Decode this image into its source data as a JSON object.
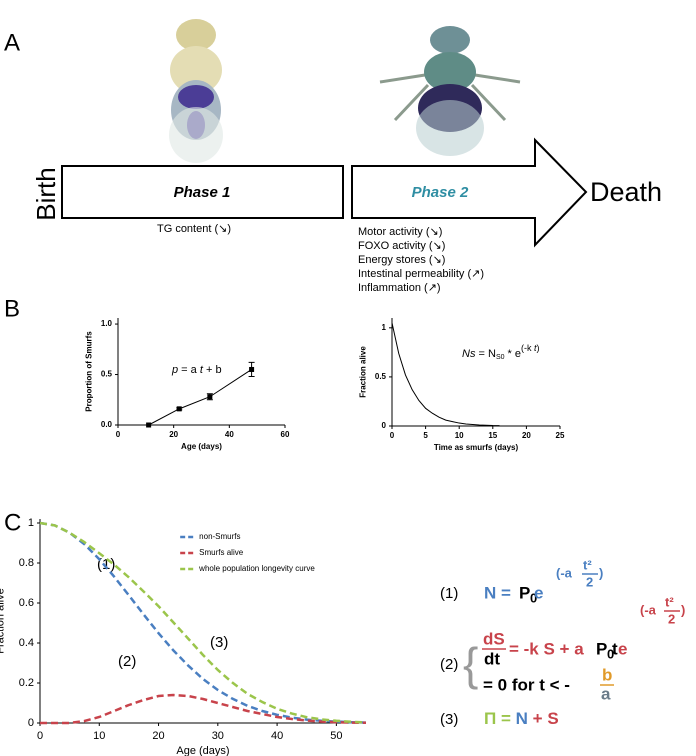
{
  "panel_labels": [
    "A",
    "B",
    "C"
  ],
  "diagram": {
    "start": "Birth",
    "end": "Death",
    "phase1": {
      "title": "Phase 1",
      "notes": [
        "TG content (↘)"
      ]
    },
    "phase2": {
      "title": "Phase 2",
      "notes": [
        "Motor activity (↘)",
        "FOXO activity (↘)",
        "Energy stores (↘)",
        "Intestinal permeability (↗)",
        "Inflammation (↗)"
      ]
    }
  },
  "chart_data": [
    {
      "type": "line",
      "markers": true,
      "xlabel": "Age (days)",
      "ylabel": "Proportion of Smurfs",
      "annotation": [
        "p",
        " = a ",
        "t",
        " + b"
      ],
      "x": [
        11,
        22,
        33,
        48
      ],
      "series": [
        {
          "color": "#000000",
          "values": [
            0,
            0.16,
            0.28,
            0.55
          ],
          "errors": [
            0,
            0.01,
            0.03,
            0.07
          ]
        }
      ],
      "xlim": [
        0,
        60
      ],
      "xticks": [
        0,
        20,
        40,
        60
      ],
      "ylim": [
        0,
        1.06
      ],
      "yticks": [
        {
          "value": 0,
          "label": "0.0"
        },
        {
          "value": 0.5,
          "label": "0.5"
        },
        {
          "value": 1,
          "label": "1.0"
        }
      ]
    },
    {
      "type": "line",
      "markers": false,
      "xlabel": "Time as smurfs (days)",
      "ylabel": "Fraction alive",
      "annotation": [
        "Ns",
        " = N",
        "S0",
        " * e",
        "(-k ",
        "t",
        ")"
      ],
      "x": [
        0,
        1,
        2,
        3,
        4,
        5,
        6,
        7,
        8,
        9,
        10,
        11,
        12,
        13,
        14,
        15,
        16
      ],
      "series": [
        {
          "color": "#000000",
          "values": [
            1.05,
            0.74,
            0.52,
            0.37,
            0.26,
            0.18,
            0.13,
            0.09,
            0.06,
            0.045,
            0.03,
            0.02,
            0.015,
            0.01,
            0.008,
            0.005,
            0.004
          ]
        }
      ],
      "xlim": [
        0,
        25
      ],
      "xticks": [
        0,
        5,
        10,
        15,
        20,
        25
      ],
      "ylim": [
        0,
        1.1
      ],
      "yticks": [
        0,
        0.5,
        1
      ]
    },
    {
      "type": "line",
      "markers": false,
      "dashed": true,
      "legend": "top-center",
      "xlabel": "Age (days)",
      "ylabel": "Fraction alive",
      "curve_labels": [
        "(1)",
        "(2)",
        "(3)"
      ],
      "x": [
        0,
        2.5,
        5,
        7.5,
        10,
        12.5,
        15,
        17.5,
        20,
        22.5,
        25,
        27.5,
        30,
        32.5,
        35,
        37.5,
        40,
        42.5,
        45,
        47.5,
        50,
        52.5,
        55
      ],
      "series": [
        {
          "name": "non-Smurfs",
          "color": "#4a7fc1",
          "values": [
            1,
            0.988,
            0.951,
            0.894,
            0.819,
            0.732,
            0.638,
            0.542,
            0.449,
            0.363,
            0.287,
            0.22,
            0.165,
            0.121,
            0.086,
            0.06,
            0.041,
            0.027,
            0.017,
            0.011,
            0.007,
            0.004,
            0.002
          ]
        },
        {
          "name": "Smurfs alive",
          "color": "#c8434b",
          "values": [
            0,
            0,
            0,
            0.01,
            0.03,
            0.06,
            0.09,
            0.115,
            0.135,
            0.14,
            0.135,
            0.12,
            0.1,
            0.08,
            0.06,
            0.045,
            0.03,
            0.02,
            0.012,
            0.007,
            0.004,
            0.002,
            0.001
          ]
        },
        {
          "name": "whole population longevity curve",
          "color": "#9bc54b",
          "values": [
            1,
            0.988,
            0.951,
            0.904,
            0.849,
            0.792,
            0.728,
            0.657,
            0.584,
            0.503,
            0.422,
            0.34,
            0.265,
            0.201,
            0.146,
            0.105,
            0.071,
            0.047,
            0.029,
            0.018,
            0.011,
            0.006,
            0.003
          ]
        }
      ],
      "xlim": [
        0,
        55
      ],
      "xticks": [
        0,
        10,
        20,
        30,
        40,
        50
      ],
      "ylim": [
        0,
        1.02
      ],
      "yticks": [
        0,
        0.2,
        0.4,
        0.6,
        0.8,
        1
      ]
    }
  ],
  "equations": [
    {
      "label": "(1)",
      "parts": [
        "N = ",
        "P",
        "0",
        " e",
        "(-a",
        "t²",
        "2",
        ")"
      ]
    },
    {
      "label": "(2)",
      "parts": [
        "dS",
        "dt",
        "= -k S + a",
        "P",
        "0",
        "t",
        " e",
        "(-a",
        "t²",
        "2",
        ")"
      ],
      "case": [
        "= 0 for t < -",
        "b",
        "a"
      ]
    },
    {
      "label": "(3)",
      "parts": [
        "Π = ",
        "N",
        " + ",
        "S"
      ]
    }
  ]
}
